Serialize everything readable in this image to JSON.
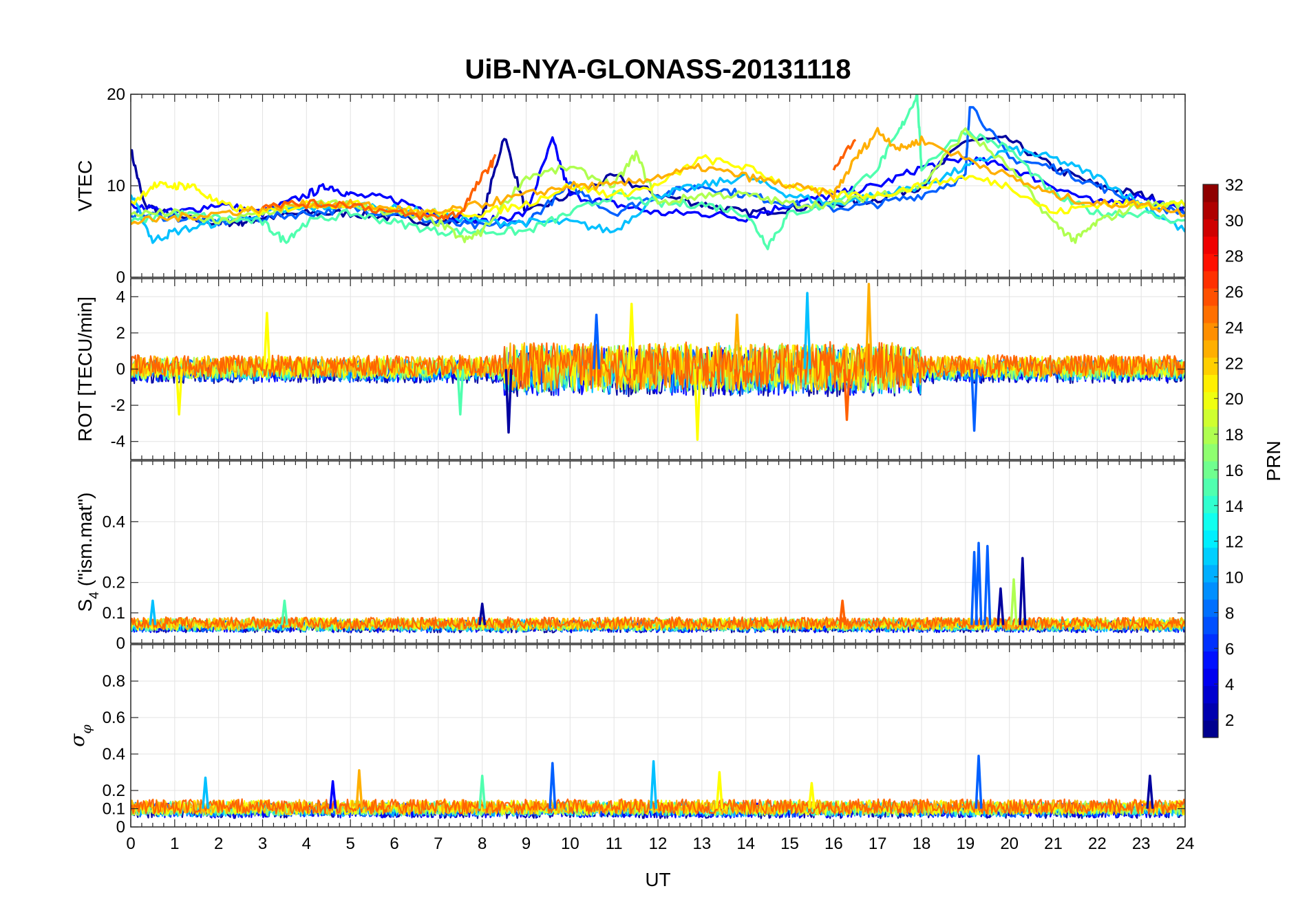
{
  "chart_data": {
    "type": "line",
    "title": "UiB-NYA-GLONASS-20131118",
    "xlabel": "UT",
    "xlim": [
      0,
      24
    ],
    "x_ticks": [
      0,
      1,
      2,
      3,
      4,
      5,
      6,
      7,
      8,
      9,
      10,
      11,
      12,
      13,
      14,
      15,
      16,
      17,
      18,
      19,
      20,
      21,
      22,
      23,
      24
    ],
    "x_tick_labels": [
      "0",
      "1",
      "2",
      "3",
      "4",
      "5",
      "6",
      "7",
      "8",
      "9",
      "10",
      "11",
      "12",
      "13",
      "14",
      "15",
      "16",
      "17",
      "18",
      "19",
      "20",
      "21",
      "22",
      "23",
      "24"
    ],
    "grid": true,
    "colormap": "jet",
    "colorbar": {
      "label": "PRN",
      "range": [
        1,
        32
      ],
      "ticks": [
        2,
        4,
        6,
        8,
        10,
        12,
        14,
        16,
        18,
        20,
        22,
        24,
        26,
        28,
        30,
        32
      ],
      "tick_labels": [
        "2",
        "4",
        "6",
        "8",
        "10",
        "12",
        "14",
        "16",
        "18",
        "20",
        "22",
        "24",
        "26",
        "28",
        "30",
        "32"
      ],
      "placement": "right"
    },
    "panels": [
      {
        "id": "vtec",
        "ylabel": "VTEC",
        "ylim": [
          0,
          20
        ],
        "y_ticks": [
          0,
          10,
          20
        ],
        "y_tick_labels": [
          "0",
          "10",
          "20"
        ],
        "series": [
          {
            "prn": 2,
            "color": "#00009f",
            "x": [
              0,
              0.3,
              1,
              2,
              2.5,
              3,
              4,
              5,
              6,
              7,
              8,
              8.5,
              9,
              10,
              11,
              12,
              13,
              14,
              15,
              16,
              17,
              18,
              19,
              20,
              21,
              22,
              23,
              24
            ],
            "y": [
              14,
              8,
              6.5,
              6,
              6,
              6.5,
              7,
              7,
              6.5,
              6,
              6.5,
              15.5,
              7,
              9,
              11,
              9,
              8,
              7,
              7.5,
              8,
              8.5,
              10,
              15,
              15,
              12,
              10,
              9,
              7.5
            ]
          },
          {
            "prn": 4,
            "color": "#0000ff",
            "x": [
              0,
              1,
              2,
              3,
              4,
              4.5,
              5,
              6,
              7,
              8,
              9,
              9.6,
              10,
              11,
              12,
              13,
              14,
              15,
              16,
              17,
              18,
              19,
              20,
              21,
              22,
              23,
              24
            ],
            "y": [
              8,
              7,
              8,
              7,
              9,
              10,
              9,
              8.5,
              7,
              6,
              7,
              15,
              9,
              8,
              7,
              7,
              6.5,
              8,
              9,
              10,
              12,
              13,
              12,
              10,
              8,
              9,
              7
            ]
          },
          {
            "prn": 8,
            "color": "#0060ff",
            "x": [
              0,
              1,
              2,
              3,
              4,
              5,
              6,
              7,
              8,
              9,
              10,
              11,
              12,
              13,
              14,
              15,
              16,
              17,
              18,
              19,
              19.1,
              20,
              21,
              22,
              23,
              24
            ],
            "y": [
              7,
              6.5,
              6,
              6.5,
              7,
              7.5,
              7,
              6,
              5.5,
              6,
              10,
              7,
              9,
              10,
              9,
              8,
              7.5,
              8,
              9,
              11,
              19,
              13,
              12,
              10,
              8,
              7
            ]
          },
          {
            "prn": 12,
            "color": "#00c0ff",
            "x": [
              0,
              0.5,
              1,
              2,
              3,
              4,
              5,
              6,
              7,
              8,
              9,
              10,
              11,
              12,
              13,
              14,
              15,
              16,
              17,
              18,
              19,
              20,
              21,
              22,
              23,
              24
            ],
            "y": [
              9,
              4,
              5,
              6,
              7,
              7.5,
              8,
              7.5,
              7,
              6,
              6,
              6,
              5,
              9,
              10,
              11,
              9,
              8,
              9,
              10,
              12,
              14,
              13,
              11,
              8,
              5
            ]
          },
          {
            "prn": 16,
            "color": "#50ffaf",
            "x": [
              0,
              1,
              2,
              3,
              3.5,
              4,
              5,
              6,
              7,
              8,
              9,
              10,
              11,
              12,
              13,
              14,
              14.5,
              15,
              16,
              17,
              17.5,
              17.9,
              18,
              19,
              20,
              21,
              22,
              23,
              24
            ],
            "y": [
              6,
              7,
              6.5,
              6,
              4,
              6,
              7,
              6,
              5,
              5,
              5,
              7,
              9,
              8,
              8,
              7,
              3.5,
              7,
              8,
              12,
              16,
              20,
              12,
              16,
              14,
              9,
              7,
              7,
              6
            ]
          },
          {
            "prn": 18,
            "color": "#afff50",
            "x": [
              0,
              1,
              2,
              3,
              4,
              5,
              6,
              7,
              7.6,
              8,
              9,
              10,
              11,
              11.5,
              12,
              13,
              14,
              15,
              16,
              17,
              18,
              19,
              20,
              21,
              21.5,
              22,
              23,
              24
            ],
            "y": [
              7,
              7,
              6,
              7,
              8,
              8,
              7,
              6,
              4,
              5,
              11,
              12,
              10,
              13.5,
              8,
              9,
              9,
              8,
              8,
              9,
              10,
              16,
              12,
              6,
              4,
              6,
              8,
              8
            ]
          },
          {
            "prn": 20,
            "color": "#ffff00",
            "x": [
              0,
              0.5,
              1,
              1.4,
              2,
              3,
              4,
              5,
              6,
              7,
              8,
              9,
              10,
              11,
              12,
              13,
              14,
              15,
              16,
              17,
              18,
              19,
              20,
              21,
              22,
              23,
              24
            ],
            "y": [
              8,
              10,
              10,
              10,
              8,
              7,
              8,
              8,
              7.5,
              7,
              7,
              8,
              10,
              9,
              10,
              13,
              12,
              10,
              9,
              9,
              10,
              11,
              10,
              7,
              8,
              8,
              8
            ]
          },
          {
            "prn": 22,
            "color": "#ffaf00",
            "x": [
              0,
              1,
              2,
              3,
              4,
              5,
              6,
              6.5,
              7,
              8,
              9,
              10,
              11,
              12,
              13,
              14,
              15,
              16,
              16.5,
              17,
              17.5,
              18,
              19,
              20,
              21,
              22,
              23,
              24
            ],
            "y": [
              6,
              6.5,
              7,
              7.5,
              8,
              8,
              7.5,
              7,
              7,
              8,
              9,
              10,
              10,
              11,
              12,
              11,
              10,
              9,
              13,
              16,
              14,
              15,
              13,
              11,
              9,
              8,
              8,
              7
            ]
          },
          {
            "prn": 24,
            "color": "#ff6000",
            "x": [
              3,
              4,
              5,
              6,
              7,
              7.5,
              8,
              8.3
            ],
            "y": [
              8,
              8,
              8,
              7,
              6.5,
              7,
              11,
              13
            ]
          },
          {
            "prn": 24,
            "color": "#ff6000",
            "x": [
              16,
              16.5
            ],
            "y": [
              12,
              15
            ]
          }
        ]
      },
      {
        "id": "rot",
        "ylabel": "ROT [TECU/min]",
        "ylim": [
          -5,
          5
        ],
        "y_ticks": [
          -4,
          -2,
          0,
          2,
          4
        ],
        "y_tick_labels": [
          "-4",
          "-2",
          "0",
          "2",
          "4"
        ],
        "spikes": [
          {
            "x": 8.6,
            "y": -3.5,
            "color": "#00009f"
          },
          {
            "x": 12.9,
            "y": -3.9,
            "color": "#ffff00"
          },
          {
            "x": 16.8,
            "y": 4.7,
            "color": "#ffaf00"
          },
          {
            "x": 15.4,
            "y": 4.2,
            "color": "#00c0ff"
          },
          {
            "x": 3.1,
            "y": 3.1,
            "color": "#ffff00"
          },
          {
            "x": 1.1,
            "y": -2.5,
            "color": "#ffff00"
          },
          {
            "x": 16.3,
            "y": -2.8,
            "color": "#ff6000"
          },
          {
            "x": 19.2,
            "y": -3.4,
            "color": "#0060ff"
          },
          {
            "x": 11.4,
            "y": 3.6,
            "color": "#ffff00"
          },
          {
            "x": 10.6,
            "y": 3.0,
            "color": "#0060ff"
          },
          {
            "x": 7.5,
            "y": -2.5,
            "color": "#50ffaf"
          },
          {
            "x": 13.8,
            "y": 3.0,
            "color": "#ffaf00"
          }
        ]
      },
      {
        "id": "s4",
        "ylabel_main": "S",
        "ylabel_sub": "4",
        "ylabel_rest": " (\"ism.mat\")",
        "ylim": [
          0,
          0.6
        ],
        "y_ticks": [
          0,
          0.1,
          0.2,
          0.4
        ],
        "y_tick_labels": [
          "0",
          "0.1",
          "0.2",
          "0.4"
        ],
        "spikes": [
          {
            "x": 19.2,
            "y": 0.3,
            "color": "#0060ff"
          },
          {
            "x": 19.3,
            "y": 0.33,
            "color": "#0060ff"
          },
          {
            "x": 19.5,
            "y": 0.32,
            "color": "#0060ff"
          },
          {
            "x": 20.3,
            "y": 0.28,
            "color": "#00009f"
          },
          {
            "x": 19.8,
            "y": 0.18,
            "color": "#00009f"
          },
          {
            "x": 20.1,
            "y": 0.21,
            "color": "#afff50"
          },
          {
            "x": 8.0,
            "y": 0.13,
            "color": "#00009f"
          },
          {
            "x": 3.5,
            "y": 0.14,
            "color": "#50ffaf"
          },
          {
            "x": 16.2,
            "y": 0.14,
            "color": "#ff6000"
          },
          {
            "x": 0.5,
            "y": 0.14,
            "color": "#00c0ff"
          }
        ]
      },
      {
        "id": "sigma",
        "ylabel_main": "σ",
        "ylabel_sub": "φ",
        "ylim": [
          0,
          1
        ],
        "y_ticks": [
          0,
          0.1,
          0.2,
          0.4,
          0.6,
          0.8
        ],
        "y_tick_labels": [
          "0",
          "0.1",
          "0.2",
          "0.4",
          "0.6",
          "0.8"
        ],
        "spikes": [
          {
            "x": 19.3,
            "y": 0.39,
            "color": "#0060ff"
          },
          {
            "x": 5.2,
            "y": 0.31,
            "color": "#ffaf00"
          },
          {
            "x": 9.6,
            "y": 0.35,
            "color": "#0060ff"
          },
          {
            "x": 11.9,
            "y": 0.36,
            "color": "#00c0ff"
          },
          {
            "x": 13.4,
            "y": 0.3,
            "color": "#ffff00"
          },
          {
            "x": 4.6,
            "y": 0.25,
            "color": "#0000ff"
          },
          {
            "x": 1.7,
            "y": 0.27,
            "color": "#00c0ff"
          },
          {
            "x": 8.0,
            "y": 0.28,
            "color": "#50ffaf"
          },
          {
            "x": 23.2,
            "y": 0.28,
            "color": "#00009f"
          },
          {
            "x": 15.5,
            "y": 0.24,
            "color": "#ffff00"
          }
        ]
      }
    ]
  }
}
